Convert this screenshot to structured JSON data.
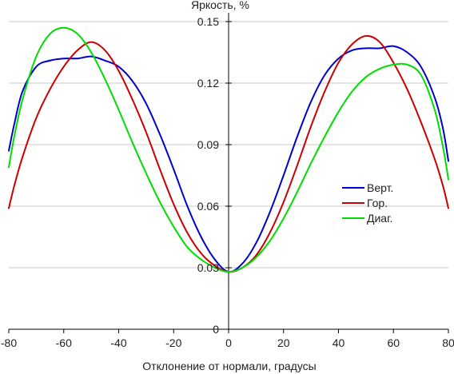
{
  "chart_data": {
    "type": "line",
    "title": "",
    "xlabel": "Отклонение от нормали, градусы",
    "ylabel": "Яркость, %",
    "xlim": [
      -80,
      80
    ],
    "ylim": [
      0,
      0.15
    ],
    "x_ticks": [
      -80,
      -60,
      -40,
      -20,
      0,
      20,
      40,
      60,
      80
    ],
    "x_tick_labels": [
      "-80",
      "-60",
      "-40",
      "-20",
      "0",
      "20",
      "40",
      "60",
      "80"
    ],
    "y_ticks": [
      0,
      0.03,
      0.06,
      0.09,
      0.12,
      0.15
    ],
    "y_tick_labels": [
      "0",
      "0.03",
      "0.06",
      "0.09",
      "0.12",
      "0.15"
    ],
    "grid": "horizontal",
    "legend_position": "right",
    "colors": {
      "axis": "#000000",
      "grid": "#c8c8c8"
    },
    "series": [
      {
        "name": "Верт.",
        "color": "#0000cc",
        "x": [
          -80,
          -78,
          -75,
          -70,
          -65,
          -60,
          -55,
          -50,
          -45,
          -40,
          -35,
          -30,
          -25,
          -20,
          -15,
          -10,
          -5,
          0,
          5,
          10,
          15,
          20,
          25,
          30,
          35,
          40,
          45,
          50,
          55,
          60,
          65,
          70,
          75,
          78,
          80
        ],
        "y": [
          0.087,
          0.1,
          0.116,
          0.128,
          0.131,
          0.132,
          0.132,
          0.133,
          0.131,
          0.128,
          0.121,
          0.11,
          0.095,
          0.078,
          0.06,
          0.045,
          0.034,
          0.028,
          0.032,
          0.042,
          0.057,
          0.075,
          0.094,
          0.111,
          0.124,
          0.132,
          0.136,
          0.137,
          0.137,
          0.138,
          0.135,
          0.128,
          0.113,
          0.098,
          0.082
        ]
      },
      {
        "name": "Гор.",
        "color": "#cc0000",
        "x": [
          -80,
          -78,
          -75,
          -70,
          -65,
          -60,
          -55,
          -50,
          -45,
          -40,
          -35,
          -30,
          -25,
          -20,
          -15,
          -10,
          -5,
          0,
          5,
          10,
          15,
          20,
          25,
          30,
          35,
          40,
          45,
          50,
          55,
          60,
          65,
          70,
          75,
          78,
          80
        ],
        "y": [
          0.059,
          0.07,
          0.084,
          0.103,
          0.117,
          0.128,
          0.136,
          0.14,
          0.136,
          0.126,
          0.112,
          0.096,
          0.078,
          0.061,
          0.047,
          0.037,
          0.031,
          0.028,
          0.03,
          0.036,
          0.047,
          0.062,
          0.08,
          0.099,
          0.116,
          0.13,
          0.139,
          0.143,
          0.14,
          0.13,
          0.117,
          0.101,
          0.083,
          0.07,
          0.059
        ]
      },
      {
        "name": "Диаг.",
        "color": "#00dd00",
        "x": [
          -80,
          -78,
          -75,
          -70,
          -65,
          -60,
          -55,
          -50,
          -45,
          -40,
          -35,
          -30,
          -25,
          -20,
          -15,
          -10,
          -5,
          0,
          5,
          10,
          15,
          20,
          25,
          30,
          35,
          40,
          45,
          50,
          55,
          60,
          65,
          70,
          75,
          78,
          80
        ],
        "y": [
          0.079,
          0.094,
          0.112,
          0.133,
          0.144,
          0.147,
          0.144,
          0.135,
          0.122,
          0.107,
          0.091,
          0.076,
          0.062,
          0.05,
          0.04,
          0.034,
          0.03,
          0.028,
          0.03,
          0.035,
          0.043,
          0.054,
          0.067,
          0.081,
          0.094,
          0.106,
          0.116,
          0.123,
          0.127,
          0.129,
          0.129,
          0.124,
          0.107,
          0.089,
          0.073
        ]
      }
    ]
  }
}
